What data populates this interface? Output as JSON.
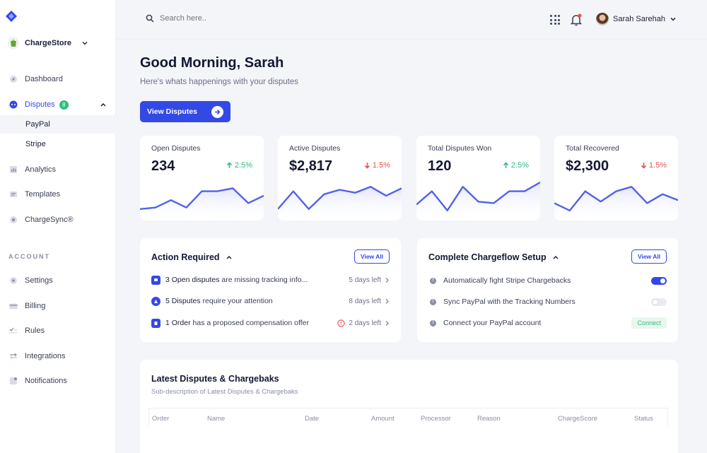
{
  "sidebar": {
    "store_name": "ChargeStore",
    "nav": [
      {
        "label": "Dashboard"
      },
      {
        "label": "Disputes",
        "badge": "8"
      },
      {
        "label": "Analytics"
      },
      {
        "label": "Templates"
      },
      {
        "label": "ChargeSync®"
      }
    ],
    "disputes_sub": [
      "PayPal",
      "Stripe"
    ],
    "account_section": "ACCOUNT",
    "account_nav": [
      {
        "label": "Settings"
      },
      {
        "label": "Billing"
      },
      {
        "label": "Rules"
      },
      {
        "label": "Integrations"
      },
      {
        "label": "Notifications"
      }
    ]
  },
  "topbar": {
    "search_placeholder": "Search here..",
    "user_name": "Sarah Sarehah"
  },
  "greeting": {
    "title": "Good Morning, Sarah",
    "subtitle": "Here's whats happenings with your disputes",
    "button": "View Disputes"
  },
  "stats": [
    {
      "label": "Open Disputes",
      "value": "234",
      "change": "2.5%",
      "direction": "up",
      "trend": [
        2,
        3,
        8,
        3,
        14,
        14,
        16,
        6,
        11
      ]
    },
    {
      "label": "Active Disputes",
      "value": "$2,817",
      "change": "1.5%",
      "direction": "down",
      "trend": [
        2,
        14,
        2,
        12,
        15,
        13,
        17,
        11,
        16
      ]
    },
    {
      "label": "Total Disputes Won",
      "value": "120",
      "change": "2.5%",
      "direction": "up",
      "trend": [
        5,
        14,
        1,
        17,
        7,
        6,
        14,
        14,
        20
      ]
    },
    {
      "label": "Total Recovered",
      "value": "$2,300",
      "change": "1.5%",
      "direction": "down",
      "trend": [
        6,
        1,
        14,
        7,
        14,
        17,
        6,
        12,
        8
      ]
    }
  ],
  "action_required": {
    "title": "Action Required",
    "view_all": "View All",
    "items": [
      {
        "lead": "3 Open disputes",
        "rest": " are missing tracking info...",
        "due": "5 days left",
        "icon_color": "#3349e6"
      },
      {
        "lead": "5 Disputes",
        "rest": " require your attention",
        "due": "8 days left",
        "icon_color": "#3349e6"
      },
      {
        "lead": "1 Order",
        "rest": " has a proposed compensation offer",
        "due": "2 days left",
        "icon_color": "#3349e6"
      }
    ]
  },
  "setup": {
    "title": "Complete Chargeflow Setup",
    "view_all": "View All",
    "items": [
      {
        "label": "Automatically fight Stripe Chargebacks",
        "control": "toggle-on"
      },
      {
        "label": "Sync PayPal with the Tracking Numbers",
        "control": "toggle-off"
      },
      {
        "label": "Connect your PayPal account",
        "control": "Connect"
      }
    ]
  },
  "latest": {
    "title": "Latest Disputes & Chargebaks",
    "subtitle": "Sub-description of Latest Disputes & Chargebaks",
    "columns": [
      "Order",
      "Name",
      "Date",
      "Amount",
      "Processor",
      "Reason",
      "ChargeScore",
      "Status"
    ]
  },
  "colors": {
    "accent": "#3349e6",
    "positive": "#2dbf7b",
    "negative": "#e4534f",
    "spark": "#5361e8"
  }
}
